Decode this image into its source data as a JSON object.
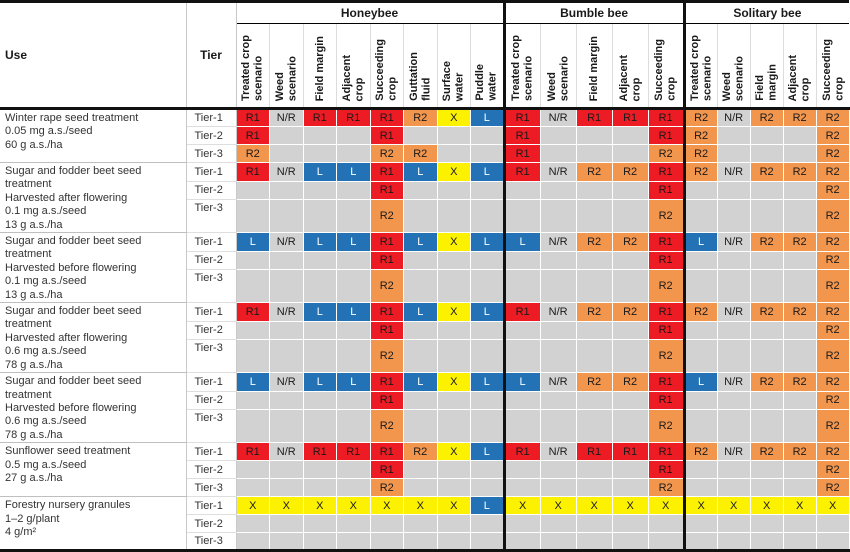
{
  "header": {
    "use": "Use",
    "tier": "Tier",
    "groups": [
      {
        "name": "Honeybee",
        "columns": [
          "Treated crop\nscenario",
          "Weed\nscenario",
          "Field margin",
          "Adjacent\ncrop",
          "Succeeding\ncrop",
          "Guttation\nfluid",
          "Surface\nwater",
          "Puddle\nwater"
        ]
      },
      {
        "name": "Bumble bee",
        "columns": [
          "Treated crop\nscenario",
          "Weed\nscenario",
          "Field margin",
          "Adjacent\ncrop",
          "Succeeding\ncrop"
        ]
      },
      {
        "name": "Solitary bee",
        "columns": [
          "Treated crop\nscenario",
          "Weed\nscenario",
          "Field\nmargin",
          "Adjacent\ncrop",
          "Succeeding\ncrop"
        ]
      }
    ]
  },
  "cell_labels": {
    "R1": "R1",
    "R2": "R2",
    "NR": "N/R",
    "X": "X",
    "L": "L",
    "": ""
  },
  "colors": {
    "r1_red": "#ed1c24",
    "r2_orange": "#f2964e",
    "x_yellow": "#fcf200",
    "l_blue": "#2272b5",
    "empty_gray": "#d2d2d2"
  },
  "blocks": [
    {
      "use": "Winter rape seed treatment\n0.05 mg a.s./seed\n60 g a.s./ha",
      "rows": [
        {
          "tier": "Tier-1",
          "cells": [
            "R1",
            "NR",
            "R1",
            "R1",
            "R1",
            "R2",
            "X",
            "L",
            "R1",
            "NR",
            "R1",
            "R1",
            "R1",
            "R2",
            "NR",
            "R2",
            "R2",
            "R2"
          ]
        },
        {
          "tier": "Tier-2",
          "cells": [
            "R1",
            "",
            "",
            "",
            "R1",
            "",
            "",
            "",
            "R1",
            "",
            "",
            "",
            "R1",
            "R2",
            "",
            "",
            "",
            "R2"
          ]
        },
        {
          "tier": "Tier-3",
          "cells": [
            "R2",
            "",
            "",
            "",
            "R2",
            "R2",
            "",
            "",
            "R1",
            "",
            "",
            "",
            "R2",
            "R2",
            "",
            "",
            "",
            "R2"
          ]
        }
      ]
    },
    {
      "use": "Sugar and fodder beet seed\ntreatment\nHarvested after flowering\n0.1 mg a.s./seed\n13 g a.s./ha",
      "rows": [
        {
          "tier": "Tier-1",
          "cells": [
            "R1",
            "NR",
            "L",
            "L",
            "R1",
            "L",
            "X",
            "L",
            "R1",
            "NR",
            "R2",
            "R2",
            "R1",
            "R2",
            "NR",
            "R2",
            "R2",
            "R2"
          ]
        },
        {
          "tier": "Tier-2",
          "cells": [
            "",
            "",
            "",
            "",
            "R1",
            "",
            "",
            "",
            "",
            "",
            "",
            "",
            "R1",
            "",
            "",
            "",
            "",
            "R2"
          ]
        },
        {
          "tier": "Tier-3",
          "cells": [
            "",
            "",
            "",
            "",
            "R2",
            "",
            "",
            "",
            "",
            "",
            "",
            "",
            "R2",
            "",
            "",
            "",
            "",
            "R2"
          ]
        }
      ]
    },
    {
      "use": "Sugar and fodder beet seed\ntreatment\nHarvested before flowering\n0.1 mg a.s./seed\n13 g a.s./ha",
      "rows": [
        {
          "tier": "Tier-1",
          "cells": [
            "L",
            "NR",
            "L",
            "L",
            "R1",
            "L",
            "X",
            "L",
            "L",
            "NR",
            "R2",
            "R2",
            "R1",
            "L",
            "NR",
            "R2",
            "R2",
            "R2"
          ]
        },
        {
          "tier": "Tier-2",
          "cells": [
            "",
            "",
            "",
            "",
            "R1",
            "",
            "",
            "",
            "",
            "",
            "",
            "",
            "R1",
            "",
            "",
            "",
            "",
            "R2"
          ]
        },
        {
          "tier": "Tier-3",
          "cells": [
            "",
            "",
            "",
            "",
            "R2",
            "",
            "",
            "",
            "",
            "",
            "",
            "",
            "R2",
            "",
            "",
            "",
            "",
            "R2"
          ]
        }
      ]
    },
    {
      "use": "Sugar and fodder beet seed\ntreatment\nHarvested after flowering\n0.6 mg a.s./seed\n78 g a.s./ha",
      "rows": [
        {
          "tier": "Tier-1",
          "cells": [
            "R1",
            "NR",
            "L",
            "L",
            "R1",
            "L",
            "X",
            "L",
            "R1",
            "NR",
            "R2",
            "R2",
            "R1",
            "R2",
            "NR",
            "R2",
            "R2",
            "R2"
          ]
        },
        {
          "tier": "Tier-2",
          "cells": [
            "",
            "",
            "",
            "",
            "R1",
            "",
            "",
            "",
            "",
            "",
            "",
            "",
            "R1",
            "",
            "",
            "",
            "",
            "R2"
          ]
        },
        {
          "tier": "Tier-3",
          "cells": [
            "",
            "",
            "",
            "",
            "R2",
            "",
            "",
            "",
            "",
            "",
            "",
            "",
            "R2",
            "",
            "",
            "",
            "",
            "R2"
          ]
        }
      ]
    },
    {
      "use": "Sugar and fodder beet seed\ntreatment\nHarvested before flowering\n0.6 mg a.s./seed\n78 g a.s./ha",
      "rows": [
        {
          "tier": "Tier-1",
          "cells": [
            "L",
            "NR",
            "L",
            "L",
            "R1",
            "L",
            "X",
            "L",
            "L",
            "NR",
            "R2",
            "R2",
            "R1",
            "L",
            "NR",
            "R2",
            "R2",
            "R2"
          ]
        },
        {
          "tier": "Tier-2",
          "cells": [
            "",
            "",
            "",
            "",
            "R1",
            "",
            "",
            "",
            "",
            "",
            "",
            "",
            "R1",
            "",
            "",
            "",
            "",
            "R2"
          ]
        },
        {
          "tier": "Tier-3",
          "cells": [
            "",
            "",
            "",
            "",
            "R2",
            "",
            "",
            "",
            "",
            "",
            "",
            "",
            "R2",
            "",
            "",
            "",
            "",
            "R2"
          ]
        }
      ]
    },
    {
      "use": "Sunflower seed treatment\n0.5 mg a.s./seed\n27 g a.s./ha",
      "rows": [
        {
          "tier": "Tier-1",
          "cells": [
            "R1",
            "NR",
            "R1",
            "R1",
            "R1",
            "R2",
            "X",
            "L",
            "R1",
            "NR",
            "R1",
            "R1",
            "R1",
            "R2",
            "NR",
            "R2",
            "R2",
            "R2"
          ]
        },
        {
          "tier": "Tier-2",
          "cells": [
            "",
            "",
            "",
            "",
            "R1",
            "",
            "",
            "",
            "",
            "",
            "",
            "",
            "R1",
            "",
            "",
            "",
            "",
            "R2"
          ]
        },
        {
          "tier": "Tier-3",
          "cells": [
            "",
            "",
            "",
            "",
            "R2",
            "",
            "",
            "",
            "",
            "",
            "",
            "",
            "R2",
            "",
            "",
            "",
            "",
            "R2"
          ]
        }
      ]
    },
    {
      "use": "Forestry nursery granules\n1–2 g/plant\n4 g/m²",
      "rows": [
        {
          "tier": "Tier-1",
          "cells": [
            "X",
            "X",
            "X",
            "X",
            "X",
            "X",
            "X",
            "L",
            "X",
            "X",
            "X",
            "X",
            "X",
            "X",
            "X",
            "X",
            "X",
            "X"
          ]
        },
        {
          "tier": "Tier-2",
          "cells": [
            "",
            "",
            "",
            "",
            "",
            "",
            "",
            "",
            "",
            "",
            "",
            "",
            "",
            "",
            "",
            "",
            "",
            ""
          ]
        },
        {
          "tier": "Tier-3",
          "cells": [
            "",
            "",
            "",
            "",
            "",
            "",
            "",
            "",
            "",
            "",
            "",
            "",
            "",
            "",
            "",
            "",
            "",
            ""
          ]
        }
      ]
    }
  ]
}
